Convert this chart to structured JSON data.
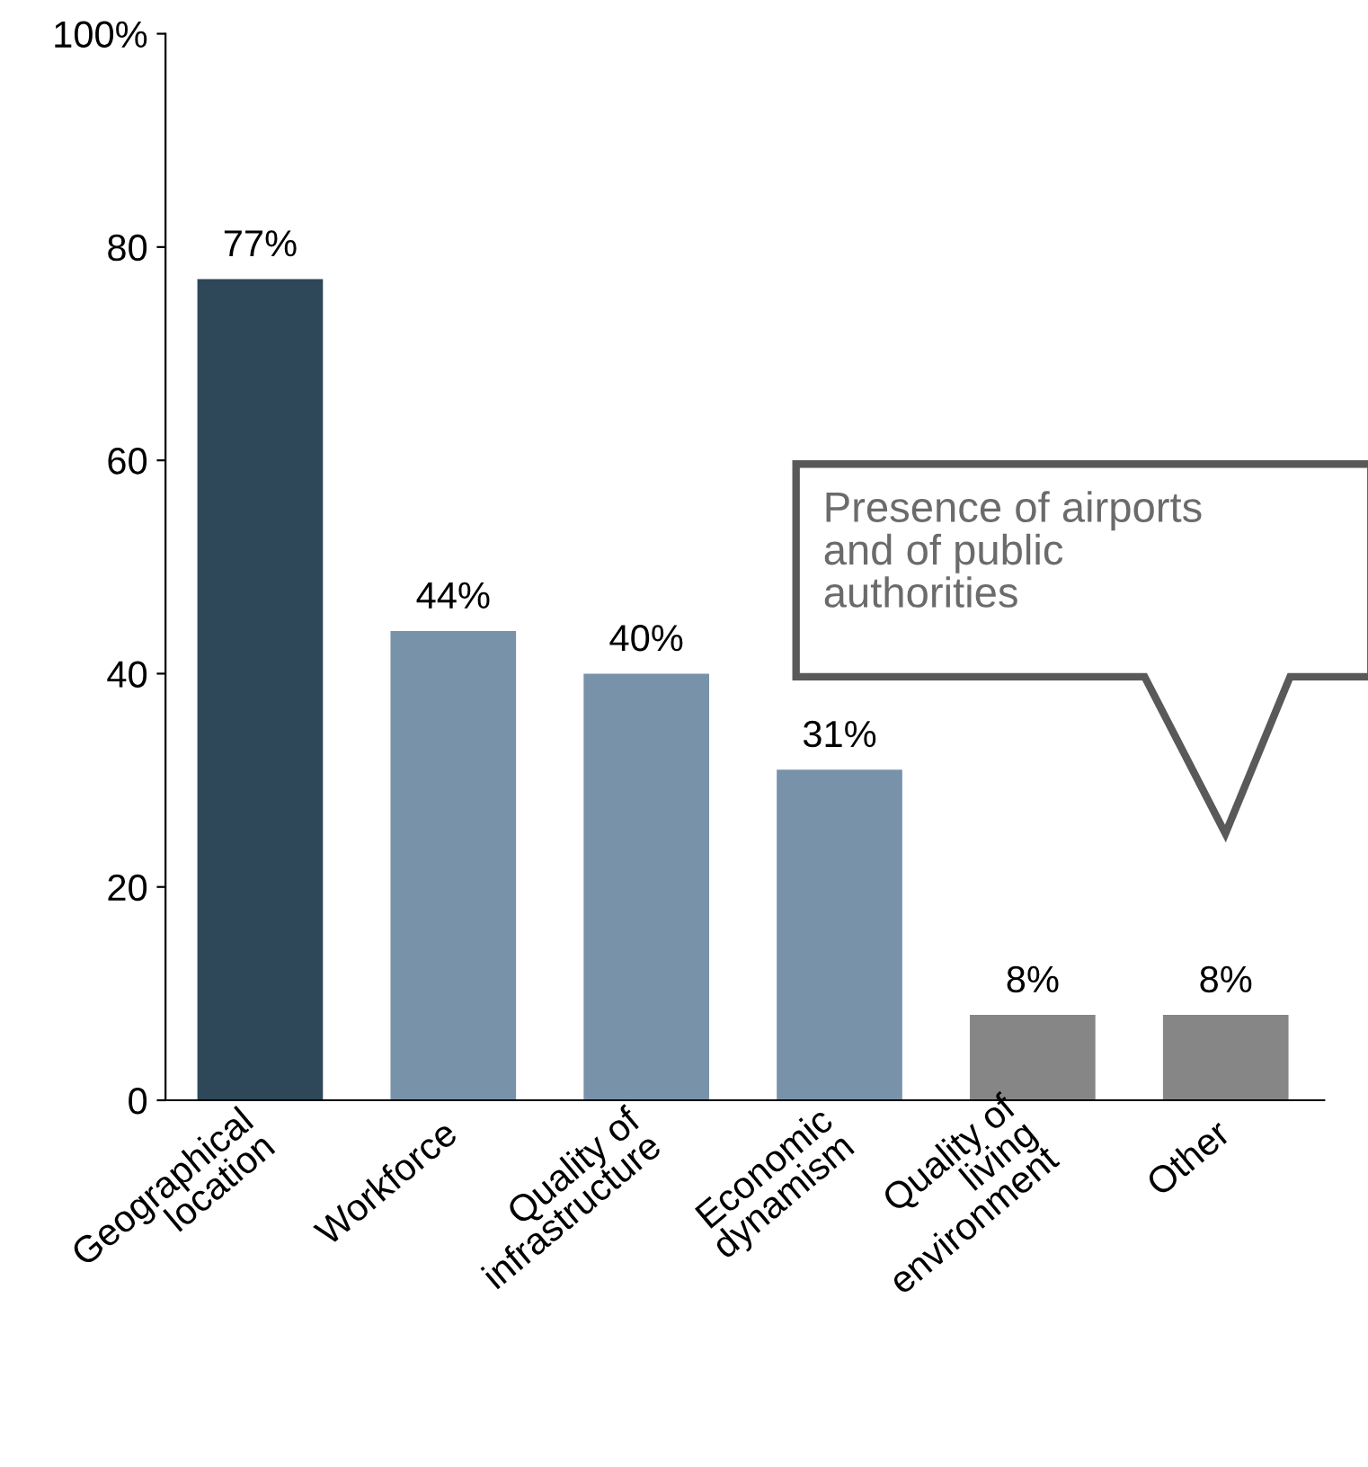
{
  "chart_data": {
    "type": "bar",
    "categories": [
      "Geographical\nlocation",
      "Workforce",
      "Quality of\ninfrastructure",
      "Economic\ndynamism",
      "Quality of\nliving\nenvironment",
      "Other"
    ],
    "values": [
      77,
      44,
      40,
      31,
      8,
      8
    ],
    "colors": [
      "#2e4759",
      "#7892aa",
      "#7892aa",
      "#7892aa",
      "#868686",
      "#868686"
    ],
    "value_labels": [
      "77%",
      "44%",
      "40%",
      "31%",
      "8%",
      "8%"
    ],
    "ylim": [
      0,
      100
    ],
    "yticks": [
      0,
      20,
      40,
      60,
      80,
      {
        "value": 100,
        "label": "100%"
      }
    ],
    "grid": false,
    "legend": false,
    "annotations": [
      "Presence of airports\nand of public\nauthorities"
    ]
  }
}
